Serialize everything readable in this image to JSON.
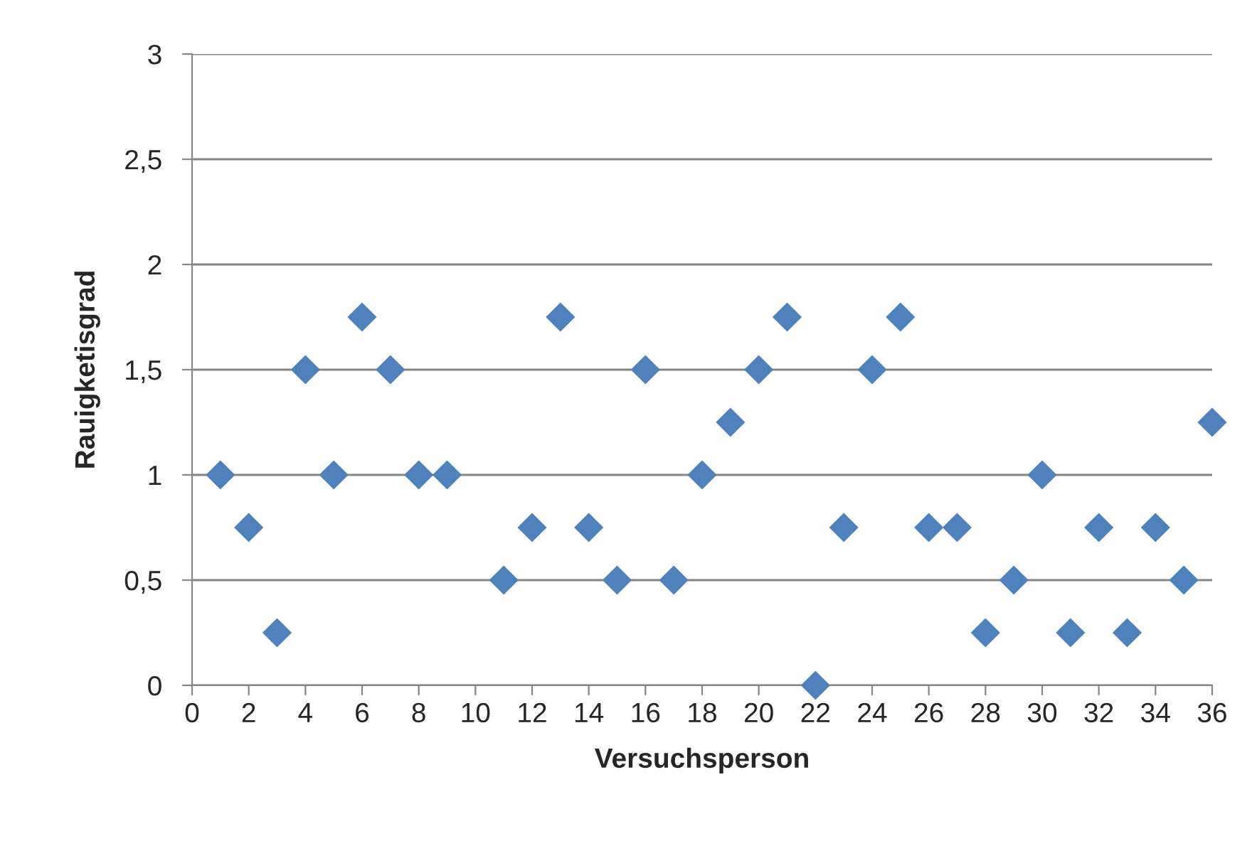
{
  "chart_data": {
    "type": "scatter",
    "xlabel": "Versuchsperson",
    "ylabel": "Rauigketisgrad",
    "x": [
      1,
      2,
      3,
      4,
      5,
      6,
      7,
      8,
      9,
      10,
      11,
      12,
      13,
      14,
      15,
      16,
      17,
      18,
      19,
      20,
      21,
      22,
      23,
      24,
      25,
      26,
      27,
      28,
      29,
      30,
      31,
      32,
      33,
      34,
      35,
      36
    ],
    "series": [
      {
        "color": "#4f81bd",
        "values": [
          1,
          0.75,
          0.25,
          1.5,
          1,
          1.75,
          1.5,
          1,
          1,
          null,
          0.5,
          0.75,
          1.75,
          0.75,
          0.5,
          1.5,
          0.5,
          1,
          1.25,
          1.5,
          1.75,
          0,
          0.75,
          1.5,
          1.75,
          0.75,
          0.75,
          0.25,
          0.5,
          1,
          0.25,
          0.75,
          0.25,
          0.75,
          0.5,
          1.25
        ]
      }
    ],
    "xlim": [
      0,
      36
    ],
    "xticks": [
      0,
      2,
      4,
      6,
      8,
      10,
      12,
      14,
      16,
      18,
      20,
      22,
      24,
      26,
      28,
      30,
      32,
      34,
      36
    ],
    "ylim": [
      0,
      3
    ],
    "yticks": [
      0,
      {
        "value": 0.5,
        "label": "0,5"
      },
      1,
      {
        "value": 1.5,
        "label": "1,5"
      },
      2,
      {
        "value": 2.5,
        "label": "2,5"
      },
      3
    ],
    "grid": "y",
    "marker": "diamond",
    "legend": false
  }
}
